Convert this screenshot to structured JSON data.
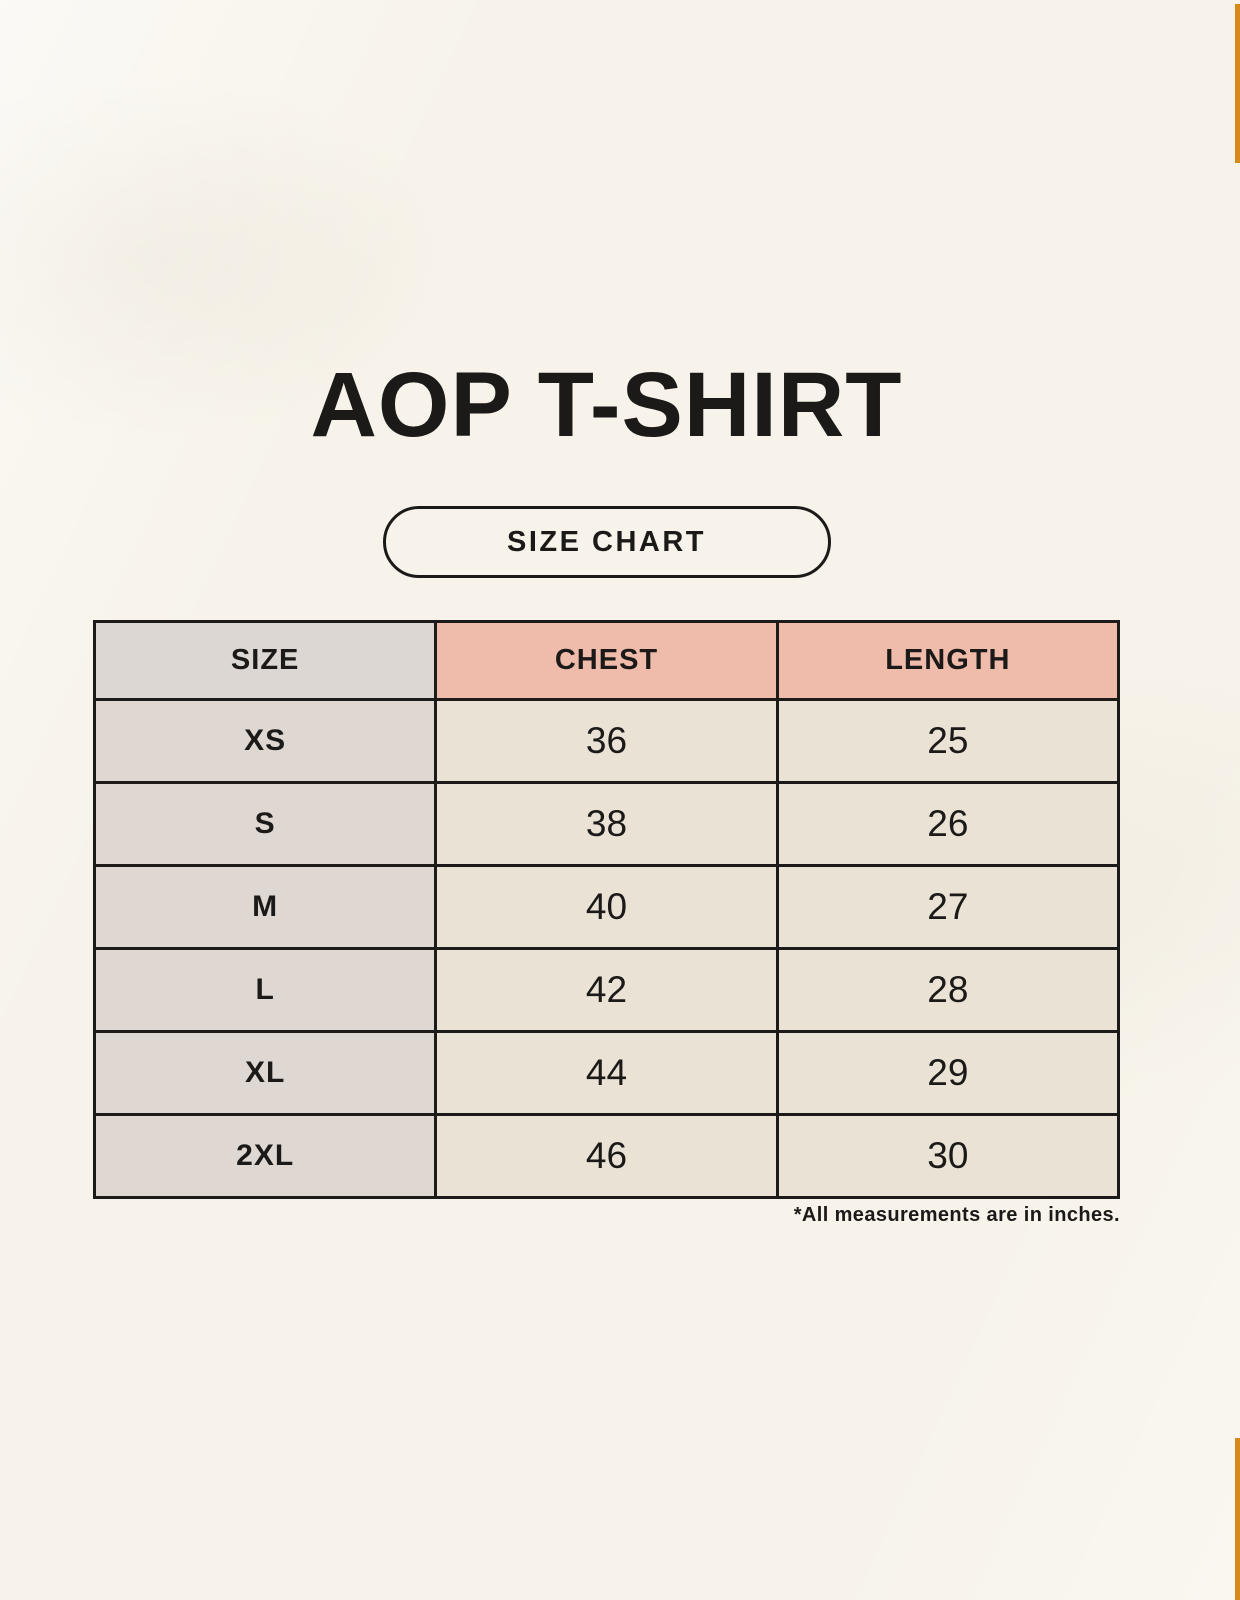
{
  "page": {
    "title": "AOP T-SHIRT",
    "button_label": "SIZE CHART",
    "footnote": "*All measurements are in inches."
  },
  "table": {
    "headers": [
      "SIZE",
      "CHEST",
      "LENGTH"
    ],
    "rows": [
      {
        "size": "XS",
        "chest": "36",
        "length": "25"
      },
      {
        "size": "S",
        "chest": "38",
        "length": "26"
      },
      {
        "size": "M",
        "chest": "40",
        "length": "27"
      },
      {
        "size": "L",
        "chest": "42",
        "length": "28"
      },
      {
        "size": "XL",
        "chest": "44",
        "length": "29"
      },
      {
        "size": "2XL",
        "chest": "46",
        "length": "30"
      }
    ]
  },
  "chart_data": {
    "type": "table",
    "title": "AOP T-SHIRT",
    "subtitle": "SIZE CHART",
    "columns": [
      "SIZE",
      "CHEST",
      "LENGTH"
    ],
    "rows": [
      [
        "XS",
        36,
        25
      ],
      [
        "S",
        38,
        26
      ],
      [
        "M",
        40,
        27
      ],
      [
        "L",
        42,
        28
      ],
      [
        "XL",
        44,
        29
      ],
      [
        "2XL",
        46,
        30
      ]
    ],
    "units": "inches",
    "note": "*All measurements are in inches."
  },
  "colors": {
    "background": "#f7f3ea",
    "header_size_bg": "#dcd7d3",
    "header_measure_bg": "#efbbaa",
    "row_label_bg": "#ded7d2",
    "row_value_bg": "#e9e2d5",
    "border": "#1c1b19",
    "text": "#1b1a18",
    "accent_bar": "#d8891c"
  }
}
